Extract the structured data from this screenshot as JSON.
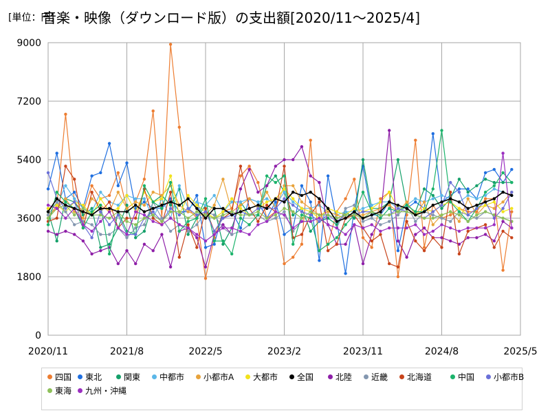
{
  "chart_data": {
    "type": "line",
    "title_prefix": "[単位：円]",
    "title": "音楽・映像（ダウンロード版）の支出額[2020/11～2025/4]",
    "xlabel": "",
    "ylabel": "",
    "ylim": [
      0,
      9000
    ],
    "y_ticks": [
      "0",
      "1800",
      "3600",
      "5400",
      "7200",
      "9000"
    ],
    "x_ticks": [
      "2020/11",
      "2021/8",
      "2022/5",
      "2023/2",
      "2023/11",
      "2024/8",
      "2025/5"
    ],
    "x_months": [
      "2020-11",
      "2020-12",
      "2021-01",
      "2021-02",
      "2021-03",
      "2021-04",
      "2021-05",
      "2021-06",
      "2021-07",
      "2021-08",
      "2021-09",
      "2021-10",
      "2021-11",
      "2021-12",
      "2022-01",
      "2022-02",
      "2022-03",
      "2022-04",
      "2022-05",
      "2022-06",
      "2022-07",
      "2022-08",
      "2022-09",
      "2022-10",
      "2022-11",
      "2022-12",
      "2023-01",
      "2023-02",
      "2023-03",
      "2023-04",
      "2023-05",
      "2023-06",
      "2023-07",
      "2023-08",
      "2023-09",
      "2023-10",
      "2023-11",
      "2023-12",
      "2024-01",
      "2024-02",
      "2024-03",
      "2024-04",
      "2024-05",
      "2024-06",
      "2024-07",
      "2024-08",
      "2024-09",
      "2024-10",
      "2024-11",
      "2024-12",
      "2025-01",
      "2025-02",
      "2025-03",
      "2025-04"
    ],
    "grid": true,
    "legend_position": "bottom",
    "series": [
      {
        "name": "四国",
        "color": "#ED7D31",
        "values": [
          3600,
          4000,
          6800,
          4100,
          3800,
          4600,
          4200,
          4300,
          5000,
          3900,
          4100,
          4800,
          6900,
          3600,
          8950,
          6400,
          3900,
          3600,
          1750,
          3000,
          3800,
          3900,
          4900,
          5200,
          4700,
          3600,
          3800,
          2200,
          2400,
          2800,
          6000,
          2600,
          2800,
          3800,
          4200,
          4800,
          3000,
          2700,
          4200,
          4400,
          1800,
          3700,
          6000,
          2700,
          4000,
          3600,
          3700,
          3900,
          3800,
          3800,
          4200,
          4200,
          2000,
          3800
        ]
      },
      {
        "name": "東北",
        "color": "#1F6FE0",
        "values": [
          4500,
          5600,
          4200,
          4400,
          3900,
          4900,
          5000,
          5900,
          4600,
          5300,
          3900,
          4100,
          3900,
          3900,
          4200,
          3800,
          3800,
          4300,
          2700,
          2800,
          3800,
          3800,
          3300,
          4200,
          4100,
          3600,
          4100,
          3100,
          3300,
          4600,
          4100,
          2300,
          4900,
          3500,
          1900,
          3900,
          5200,
          3700,
          3700,
          4100,
          2600,
          3900,
          4100,
          3900,
          6200,
          4100,
          4300,
          4500,
          4500,
          4200,
          5000,
          5100,
          4700,
          5100
        ]
      },
      {
        "name": "関東",
        "color": "#15A06A",
        "values": [
          3800,
          2900,
          4200,
          4100,
          3700,
          3900,
          2700,
          2800,
          3300,
          4000,
          3000,
          3200,
          4100,
          4300,
          4000,
          4500,
          3100,
          3600,
          4000,
          3900,
          2800,
          3300,
          4100,
          3700,
          3700,
          4600,
          4900,
          4400,
          3700,
          3900,
          3200,
          3500,
          3600,
          3400,
          3800,
          3600,
          5400,
          3900,
          3900,
          4100,
          5400,
          4000,
          3800,
          4500,
          4300,
          3900,
          4200,
          4800,
          4400,
          4600,
          4800,
          4700,
          4700,
          4700
        ]
      },
      {
        "name": "中都市",
        "color": "#5BB7E8",
        "values": [
          3900,
          4000,
          4600,
          4200,
          3900,
          3800,
          4400,
          4100,
          4000,
          4300,
          4200,
          4200,
          3600,
          4200,
          3600,
          4600,
          3900,
          4100,
          4000,
          4300,
          3800,
          4100,
          4100,
          4200,
          4100,
          4200,
          4000,
          4400,
          4100,
          3900,
          3900,
          4000,
          3800,
          3700,
          3800,
          3800,
          3900,
          4000,
          4100,
          4100,
          3900,
          4000,
          4200,
          4100,
          4200,
          4300,
          4200,
          4100,
          4300,
          4200,
          4300,
          4500,
          4400,
          4300
        ]
      },
      {
        "name": "小都市A",
        "color": "#E8A33C",
        "values": [
          3700,
          3900,
          4200,
          3800,
          3600,
          4200,
          4000,
          3800,
          4400,
          3900,
          4100,
          4000,
          4400,
          4300,
          4600,
          4000,
          3800,
          3700,
          3700,
          4000,
          4800,
          3800,
          4000,
          4200,
          3900,
          4400,
          3900,
          4600,
          4600,
          4100,
          3900,
          3700,
          3800,
          3700,
          3600,
          3700,
          3700,
          3800,
          3900,
          4000,
          3800,
          4100,
          3700,
          4100,
          3400,
          3700,
          3800,
          3500,
          4200,
          3700,
          4000,
          3900,
          4100,
          4400
        ]
      },
      {
        "name": "大都市",
        "color": "#F2E21C",
        "values": [
          3900,
          4000,
          3800,
          4100,
          4000,
          3700,
          4200,
          3800,
          3900,
          4300,
          3800,
          4400,
          4100,
          4200,
          4900,
          3700,
          4300,
          4000,
          3800,
          3600,
          3800,
          4200,
          3900,
          3700,
          3900,
          4100,
          4200,
          4500,
          4200,
          3900,
          3800,
          3600,
          3900,
          3800,
          3700,
          3900,
          3800,
          3900,
          4100,
          4400,
          3900,
          3800,
          3700,
          3900,
          3800,
          4000,
          4100,
          3900,
          3700,
          3900,
          4000,
          4100,
          3800,
          3900
        ]
      },
      {
        "name": "全国",
        "color": "#000000",
        "values": [
          3800,
          4200,
          4000,
          3900,
          3800,
          3700,
          3900,
          3900,
          3800,
          3800,
          4000,
          3800,
          3900,
          4000,
          4100,
          4000,
          4200,
          3900,
          3600,
          3900,
          3900,
          3700,
          3800,
          3900,
          4000,
          3900,
          4200,
          4100,
          4400,
          4300,
          4400,
          4200,
          3900,
          3500,
          3600,
          3800,
          3600,
          3700,
          3800,
          4100,
          4000,
          3900,
          3700,
          3800,
          4000,
          4100,
          4200,
          4100,
          3900,
          4000,
          4100,
          4200,
          4400,
          4300
        ]
      },
      {
        "name": "北陸",
        "color": "#8E1FA8",
        "values": [
          3200,
          3100,
          3200,
          3100,
          2900,
          2500,
          2600,
          2700,
          2200,
          2600,
          2200,
          2800,
          2600,
          3100,
          2100,
          3200,
          3300,
          3000,
          2100,
          3100,
          3400,
          3100,
          4500,
          5100,
          4400,
          4600,
          5200,
          5400,
          5400,
          5800,
          4900,
          4700,
          3400,
          2800,
          2800,
          3400,
          2200,
          3100,
          3600,
          6300,
          2900,
          2400,
          3100,
          3300,
          3000,
          3000,
          2900,
          2800,
          3000,
          3000,
          3100,
          2900,
          3500,
          3300
        ]
      },
      {
        "name": "近畿",
        "color": "#8497B0",
        "values": [
          3700,
          4100,
          3800,
          3400,
          3500,
          3400,
          3100,
          3100,
          3300,
          3000,
          3300,
          3400,
          4100,
          3600,
          3200,
          3400,
          3200,
          3400,
          3800,
          3700,
          3300,
          3100,
          3200,
          3400,
          3700,
          3500,
          3600,
          3800,
          3200,
          3500,
          3500,
          3600,
          3400,
          3300,
          3900,
          4000,
          3500,
          3600,
          3400,
          3500,
          3700,
          4000,
          3500,
          3800,
          3700,
          3600,
          3500,
          3800,
          3700,
          3600,
          3800,
          3700,
          3600,
          3500
        ]
      },
      {
        "name": "北海道",
        "color": "#C8441B",
        "values": [
          3500,
          3600,
          5200,
          4800,
          3300,
          4400,
          3800,
          4100,
          3300,
          3600,
          3600,
          4500,
          3600,
          3400,
          4400,
          2400,
          3400,
          2700,
          3900,
          3200,
          3600,
          3800,
          5200,
          3900,
          3500,
          4000,
          3800,
          5200,
          3000,
          3100,
          3700,
          4100,
          2600,
          2800,
          3600,
          3700,
          3300,
          2900,
          3100,
          2200,
          2100,
          3500,
          2900,
          2600,
          3000,
          2700,
          4400,
          2500,
          3200,
          3300,
          3400,
          2700,
          3200,
          3000
        ]
      },
      {
        "name": "中国",
        "color": "#1BB36B",
        "values": [
          3400,
          4400,
          4100,
          3900,
          3300,
          3800,
          4000,
          2500,
          3800,
          3200,
          3100,
          4600,
          4100,
          3900,
          4700,
          3200,
          3500,
          3600,
          4200,
          2900,
          2900,
          2500,
          3600,
          3400,
          3700,
          4900,
          4700,
          4900,
          2800,
          3700,
          3600,
          2600,
          2800,
          3000,
          3400,
          3700,
          4400,
          3800,
          3600,
          3900,
          3800,
          4000,
          3800,
          3800,
          4500,
          6300,
          4100,
          3800,
          3500,
          3900,
          4400,
          4600,
          5000,
          4700
        ]
      },
      {
        "name": "小都市B",
        "color": "#6A70D8",
        "values": [
          5000,
          4200,
          3900,
          4100,
          3400,
          3000,
          3800,
          3400,
          3700,
          3100,
          3100,
          3600,
          3800,
          3500,
          3900,
          3700,
          3900,
          3700,
          3800,
          3200,
          3600,
          3700,
          3800,
          3700,
          3900,
          3900,
          3900,
          4200,
          4000,
          3800,
          3700,
          3500,
          3700,
          3500,
          3700,
          3700,
          3800,
          3800,
          3700,
          3700,
          3900,
          3800,
          3700,
          3600,
          3800,
          4000,
          4700,
          4400,
          3700,
          3900,
          4100,
          3600,
          3900,
          4400
        ]
      },
      {
        "name": "東海",
        "color": "#8EC05A",
        "values": [
          3600,
          3900,
          4000,
          3700,
          3900,
          3700,
          3700,
          3600,
          3800,
          3500,
          3400,
          3600,
          3700,
          3500,
          3800,
          3800,
          3600,
          3800,
          3700,
          3600,
          3700,
          3800,
          3700,
          3700,
          3800,
          3600,
          3700,
          3900,
          3800,
          3600,
          3800,
          3700,
          3700,
          3600,
          3700,
          3700,
          3600,
          3800,
          3700,
          3700,
          3800,
          3800,
          3700,
          3600,
          3600,
          3700,
          3800,
          3700,
          3500,
          3700,
          3800,
          3700,
          3600,
          3500
        ]
      },
      {
        "name": "九州・沖縄",
        "color": "#9B2FC0",
        "values": [
          4000,
          3900,
          3600,
          3900,
          3400,
          3200,
          3500,
          3800,
          3300,
          3100,
          3800,
          3700,
          3500,
          3400,
          3600,
          3400,
          3300,
          3100,
          2900,
          3100,
          3300,
          3300,
          3200,
          3100,
          3400,
          3500,
          3800,
          3700,
          3300,
          3500,
          3500,
          3600,
          3400,
          3300,
          3100,
          3400,
          3300,
          3400,
          3200,
          3300,
          3300,
          3300,
          3400,
          3100,
          3200,
          3400,
          3300,
          3200,
          3300,
          3300,
          3300,
          3400,
          5600,
          3300
        ]
      }
    ]
  }
}
